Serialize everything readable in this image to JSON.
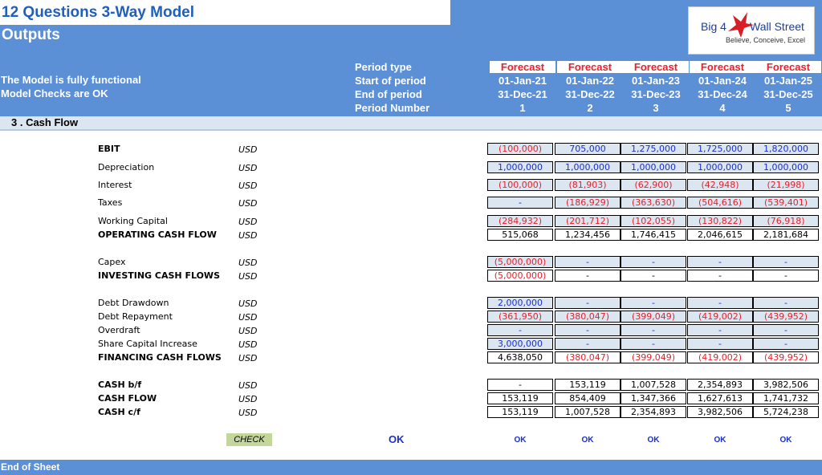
{
  "header": {
    "title": "12 Questions 3-Way Model",
    "subtitle": "Outputs",
    "status1": "The Model is fully functional",
    "status2": "Model Checks are OK",
    "row_labels": [
      "Period type",
      "Start of period",
      "End of period",
      "Period Number"
    ]
  },
  "logo": {
    "big4": "Big 4",
    "ws": "Wall Street",
    "tag": "Believe, Conceive, Excel"
  },
  "periods": [
    {
      "type": "Forecast",
      "start": "01-Jan-21",
      "end": "31-Dec-21",
      "num": "1"
    },
    {
      "type": "Forecast",
      "start": "01-Jan-22",
      "end": "31-Dec-22",
      "num": "2"
    },
    {
      "type": "Forecast",
      "start": "01-Jan-23",
      "end": "31-Dec-23",
      "num": "3"
    },
    {
      "type": "Forecast",
      "start": "01-Jan-24",
      "end": "31-Dec-24",
      "num": "4"
    },
    {
      "type": "Forecast",
      "start": "01-Jan-25",
      "end": "31-Dec-25",
      "num": "5"
    }
  ],
  "section": "3 . Cash Flow",
  "rows": [
    {
      "label": "EBIT",
      "bold": true,
      "unit": "USD",
      "values": [
        "(100,000)",
        "705,000",
        "1,275,000",
        "1,725,000",
        "1,820,000"
      ],
      "colors": [
        "red",
        "blue",
        "blue",
        "blue",
        "blue"
      ]
    },
    {
      "label": "Depreciation",
      "bold": false,
      "unit": "USD",
      "values": [
        "1,000,000",
        "1,000,000",
        "1,000,000",
        "1,000,000",
        "1,000,000"
      ],
      "colors": [
        "blue",
        "blue",
        "blue",
        "blue",
        "blue"
      ]
    },
    {
      "label": "Interest",
      "bold": false,
      "unit": "USD",
      "values": [
        "(100,000)",
        "(81,903)",
        "(62,900)",
        "(42,948)",
        "(21,998)"
      ],
      "colors": [
        "red",
        "red",
        "red",
        "red",
        "red"
      ]
    },
    {
      "label": "Taxes",
      "bold": false,
      "unit": "USD",
      "values": [
        "-",
        "(186,929)",
        "(363,630)",
        "(504,616)",
        "(539,401)"
      ],
      "colors": [
        "blue",
        "red",
        "red",
        "red",
        "red"
      ]
    },
    {
      "label": "Working Capital",
      "bold": false,
      "unit": "USD",
      "values": [
        "(284,932)",
        "(201,712)",
        "(102,055)",
        "(130,822)",
        "(76,918)"
      ],
      "colors": [
        "red",
        "red",
        "red",
        "red",
        "red"
      ]
    },
    {
      "label": "OPERATING CASH FLOW",
      "bold": true,
      "unit": "USD",
      "values": [
        "515,068",
        "1,234,456",
        "1,746,415",
        "2,046,615",
        "2,181,684"
      ],
      "colors": [
        "blk",
        "blk",
        "blk",
        "blk",
        "blk"
      ]
    },
    {
      "label": "Capex",
      "bold": false,
      "unit": "USD",
      "values": [
        "(5,000,000)",
        "-",
        "-",
        "-",
        "-"
      ],
      "colors": [
        "red",
        "blue",
        "blue",
        "blue",
        "blue"
      ]
    },
    {
      "label": "INVESTING CASH FLOWS",
      "bold": true,
      "unit": "USD",
      "values": [
        "(5,000,000)",
        "-",
        "-",
        "-",
        "-"
      ],
      "colors": [
        "red",
        "blk",
        "blk",
        "blk",
        "blk"
      ]
    },
    {
      "label": "Debt Drawdown",
      "bold": false,
      "unit": "USD",
      "values": [
        "2,000,000",
        "-",
        "-",
        "-",
        "-"
      ],
      "colors": [
        "blue",
        "blue",
        "blue",
        "blue",
        "blue"
      ]
    },
    {
      "label": "Debt Repayment",
      "bold": false,
      "unit": "USD",
      "values": [
        "(361,950)",
        "(380,047)",
        "(399,049)",
        "(419,002)",
        "(439,952)"
      ],
      "colors": [
        "red",
        "red",
        "red",
        "red",
        "red"
      ]
    },
    {
      "label": "Overdraft",
      "bold": false,
      "unit": "USD",
      "values": [
        "-",
        "-",
        "-",
        "-",
        "-"
      ],
      "colors": [
        "blue",
        "blue",
        "blue",
        "blue",
        "blue"
      ]
    },
    {
      "label": "Share Capital Increase",
      "bold": false,
      "unit": "USD",
      "values": [
        "3,000,000",
        "-",
        "-",
        "-",
        "-"
      ],
      "colors": [
        "blue",
        "blue",
        "blue",
        "blue",
        "blue"
      ]
    },
    {
      "label": "FINANCING CASH FLOWS",
      "bold": true,
      "unit": "USD",
      "values": [
        "4,638,050",
        "(380,047)",
        "(399,049)",
        "(419,002)",
        "(439,952)"
      ],
      "colors": [
        "blk",
        "red",
        "red",
        "red",
        "red"
      ]
    },
    {
      "label": "CASH b/f",
      "bold": true,
      "unit": "USD",
      "values": [
        "-",
        "153,119",
        "1,007,528",
        "2,354,893",
        "3,982,506"
      ],
      "colors": [
        "blk",
        "blk",
        "blk",
        "blk",
        "blk"
      ]
    },
    {
      "label": "CASH FLOW",
      "bold": true,
      "unit": "USD",
      "values": [
        "153,119",
        "854,409",
        "1,347,366",
        "1,627,613",
        "1,741,732"
      ],
      "colors": [
        "blk",
        "blk",
        "blk",
        "blk",
        "blk"
      ]
    },
    {
      "label": "CASH c/f",
      "bold": true,
      "unit": "USD",
      "values": [
        "153,119",
        "1,007,528",
        "2,354,893",
        "3,982,506",
        "5,724,238"
      ],
      "colors": [
        "blk",
        "blk",
        "blk",
        "blk",
        "blk"
      ]
    }
  ],
  "check": {
    "label": "CHECK",
    "summary": "OK",
    "values": [
      "OK",
      "OK",
      "OK",
      "OK",
      "OK"
    ]
  },
  "footer": "End of Sheet"
}
